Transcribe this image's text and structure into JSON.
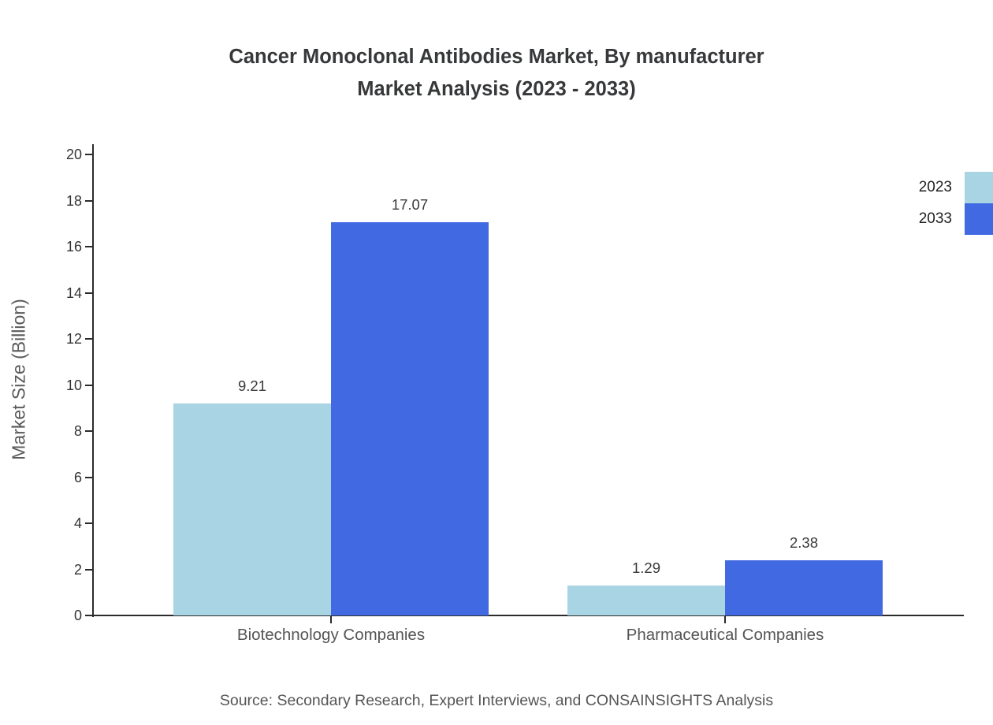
{
  "title": {
    "line1": "Cancer Monoclonal Antibodies Market, By manufacturer",
    "line2": "Market Analysis (2023 - 2033)"
  },
  "source": "Source: Secondary Research, Expert Interviews, and CONSAINSIGHTS Analysis",
  "chart_data": {
    "type": "bar",
    "title": "Cancer Monoclonal Antibodies Market, By manufacturer Market Analysis (2023 - 2033)",
    "categories": [
      "Biotechnology Companies",
      "Pharmaceutical Companies"
    ],
    "series": [
      {
        "name": "2023",
        "color": "#a9d4e4",
        "values": [
          9.21,
          1.29
        ]
      },
      {
        "name": "2033",
        "color": "#4169e1",
        "values": [
          17.07,
          2.38
        ]
      }
    ],
    "value_labels": [
      [
        "9.21",
        "1.29"
      ],
      [
        "17.07",
        "2.38"
      ]
    ],
    "xlabel": "",
    "ylabel": "Market Size (Billion)",
    "ylim": [
      0,
      20
    ],
    "yticks": [
      0,
      2,
      4,
      6,
      8,
      10,
      12,
      14,
      16,
      18,
      20
    ],
    "grid": false,
    "legend_position": "top-right"
  }
}
